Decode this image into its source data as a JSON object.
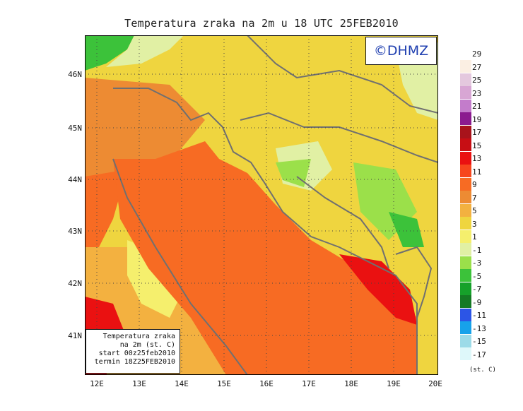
{
  "title": "Temperatura zraka na 2m u 18 UTC 25FEB2010",
  "logo": "©DHMZ",
  "info_box": {
    "lines": [
      "Temperatura zraka",
      "na 2m (st. C)",
      "start 00z25feb2010",
      "termin 18Z25FEB2010"
    ]
  },
  "axes": {
    "lat_labels": [
      "46N",
      "45N",
      "44N",
      "43N",
      "42N",
      "41N"
    ],
    "lon_labels": [
      "12E",
      "13E",
      "14E",
      "15E",
      "16E",
      "17E",
      "18E",
      "19E",
      "20E"
    ]
  },
  "legend": {
    "unit": "(st. C)",
    "entries": [
      {
        "label": "29",
        "color": "#fbefe3"
      },
      {
        "label": "27",
        "color": "#e4c8de"
      },
      {
        "label": "25",
        "color": "#d8a6d4"
      },
      {
        "label": "23",
        "color": "#c37ccb"
      },
      {
        "label": "21",
        "color": "#8b1b8f"
      },
      {
        "label": "19",
        "color": "#a8131b"
      },
      {
        "label": "17",
        "color": "#c70e14"
      },
      {
        "label": "15",
        "color": "#ea1111"
      },
      {
        "label": "13",
        "color": "#f7461d"
      },
      {
        "label": "11",
        "color": "#f76b23"
      },
      {
        "label": "9",
        "color": "#ed8b33"
      },
      {
        "label": "7",
        "color": "#f3b140"
      },
      {
        "label": "5",
        "color": "#efd53f"
      },
      {
        "label": "3",
        "color": "#f5ef6d"
      },
      {
        "label": "1",
        "color": "#e1f0a4"
      },
      {
        "label": "-1",
        "color": "#9be04a"
      },
      {
        "label": "-3",
        "color": "#3cc23a"
      },
      {
        "label": "-5",
        "color": "#16a12a"
      },
      {
        "label": "-7",
        "color": "#157a24"
      },
      {
        "label": "-9",
        "color": "#2c55e6"
      },
      {
        "label": "-11",
        "color": "#17a2ea"
      },
      {
        "label": "-13",
        "color": "#9cdbe8"
      },
      {
        "label": "-15",
        "color": "#def8fa"
      },
      {
        "label": "-17",
        "color": "#ffffff"
      }
    ]
  },
  "colors": {
    "sea": "#f76b23",
    "land_warm": "#f3d13a",
    "coast": "#707070",
    "grid": "#444444"
  }
}
